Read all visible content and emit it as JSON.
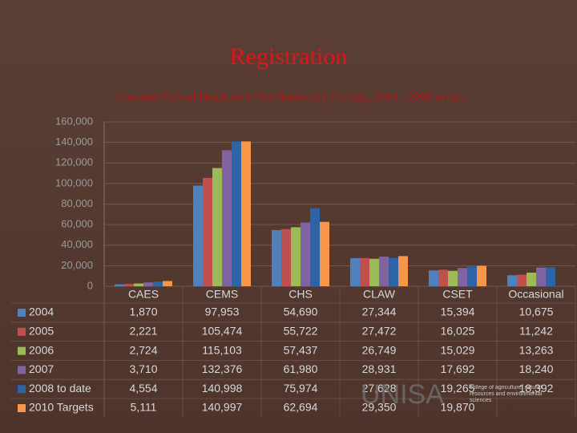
{
  "chart_data": {
    "type": "bar",
    "title": "Registration",
    "subtitle": "Absolute Formal Headcount Distribution by College, 2004 - 2008 to date",
    "categories": [
      "CAES",
      "CEMS",
      "CHS",
      "CLAW",
      "CSET",
      "Occasional"
    ],
    "series": [
      {
        "name": "2004",
        "color": "#4f81bd",
        "values": [
          1870,
          97953,
          54690,
          27344,
          15394,
          10675
        ],
        "value_labels": [
          "1,870",
          "97,953",
          "54,690",
          "27,344",
          "15,394",
          "10,675"
        ]
      },
      {
        "name": "2005",
        "color": "#c0504d",
        "values": [
          2221,
          105474,
          55722,
          27472,
          16025,
          11242
        ],
        "value_labels": [
          "2,221",
          "105,474",
          "55,722",
          "27,472",
          "16,025",
          "11,242"
        ]
      },
      {
        "name": "2006",
        "color": "#9bbb59",
        "values": [
          2724,
          115103,
          57437,
          26749,
          15029,
          13263
        ],
        "value_labels": [
          "2,724",
          "115,103",
          "57,437",
          "26,749",
          "15,029",
          "13,263"
        ]
      },
      {
        "name": "2007",
        "color": "#8064a2",
        "values": [
          3710,
          132376,
          61980,
          28931,
          17692,
          18240
        ],
        "value_labels": [
          "3,710",
          "132,376",
          "61,980",
          "28,931",
          "17,692",
          "18,240"
        ]
      },
      {
        "name": "2008 to date",
        "color": "#2c64a8",
        "values": [
          4554,
          140998,
          75974,
          27628,
          19265,
          18392
        ],
        "value_labels": [
          "4,554",
          "140,998",
          "75,974",
          "27,628",
          "19,265",
          "18,392"
        ]
      },
      {
        "name": "2010 Targets",
        "color": "#f79646",
        "values": [
          5111,
          140997,
          62694,
          29350,
          19870,
          null
        ],
        "value_labels": [
          "5,111",
          "140,997",
          "62,694",
          "29,350",
          "19,870",
          null
        ]
      }
    ],
    "ylim": [
      0,
      160000
    ],
    "yticks": [
      0,
      {
        "value": 20000,
        "label": "20,000"
      },
      {
        "value": 40000,
        "label": "40,000"
      },
      {
        "value": 60000,
        "label": "60,000"
      },
      {
        "value": 80000,
        "label": "80,000"
      },
      {
        "value": 100000,
        "label": "100,000"
      },
      {
        "value": 120000,
        "label": "120,000"
      },
      {
        "value": 140000,
        "label": "140,000"
      },
      {
        "value": 160000,
        "label": "160,000"
      }
    ]
  },
  "logo": {
    "name": "UNISA",
    "text": "college of agriculture, natural resources and environmental sciences"
  }
}
